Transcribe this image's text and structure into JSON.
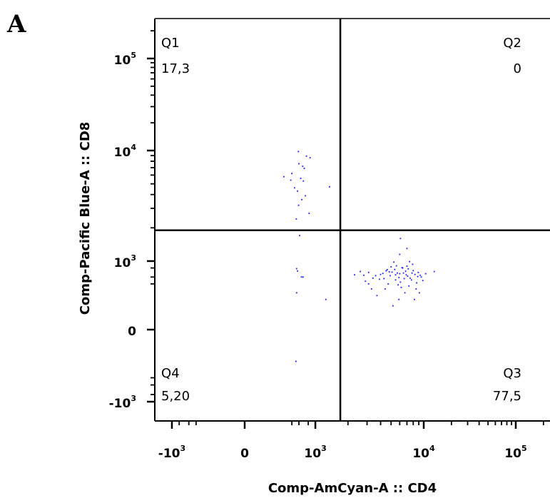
{
  "panel_label": "A",
  "chart_data": {
    "type": "scatter",
    "xlabel": "Comp-AmCyan-A :: CD4",
    "ylabel": "Comp-Pacific Blue-A :: CD8",
    "x_scale": "biexponential",
    "y_scale": "biexponential",
    "x_ticks": [
      {
        "value": -1000,
        "base": "-10",
        "exp": "3"
      },
      {
        "value": 0,
        "base": "0",
        "exp": ""
      },
      {
        "value": 1000,
        "base": "10",
        "exp": "3"
      },
      {
        "value": 10000,
        "base": "10",
        "exp": "4"
      },
      {
        "value": 100000,
        "base": "10",
        "exp": "5"
      }
    ],
    "y_ticks": [
      {
        "value": 100000,
        "base": "10",
        "exp": "5"
      },
      {
        "value": 10000,
        "base": "10",
        "exp": "4"
      },
      {
        "value": 1000,
        "base": "10",
        "exp": "3"
      },
      {
        "value": 0,
        "base": "0",
        "exp": ""
      },
      {
        "value": -1000,
        "base": "-10",
        "exp": "3"
      }
    ],
    "gates": {
      "x": 1700,
      "y": 1900
    },
    "quadrants": [
      {
        "name": "Q1",
        "value": "17,3"
      },
      {
        "name": "Q2",
        "value": "0"
      },
      {
        "name": "Q3",
        "value": "77,5"
      },
      {
        "name": "Q4",
        "value": "5,20"
      }
    ],
    "point_color": "#1a1aff",
    "points": [
      [
        45,
        5800
      ],
      [
        100,
        6200
      ],
      [
        190,
        9800
      ],
      [
        240,
        5600
      ],
      [
        130,
        4600
      ],
      [
        310,
        5300
      ],
      [
        200,
        7600
      ],
      [
        420,
        8900
      ],
      [
        600,
        8600
      ],
      [
        290,
        7200
      ],
      [
        175,
        4300
      ],
      [
        380,
        3900
      ],
      [
        265,
        3600
      ],
      [
        195,
        3200
      ],
      [
        545,
        2700
      ],
      [
        155,
        2400
      ],
      [
        1350,
        4700
      ],
      [
        215,
        1700
      ],
      [
        90,
        5400
      ],
      [
        340,
        6900
      ],
      [
        160,
        470
      ],
      [
        175,
        370
      ],
      [
        255,
        200
      ],
      [
        300,
        200
      ],
      [
        160,
        40
      ],
      [
        150,
        -20
      ],
      [
        1250,
        20
      ],
      [
        2600,
        350
      ],
      [
        3100,
        320
      ],
      [
        3600,
        230
      ],
      [
        2900,
        130
      ],
      [
        3300,
        60
      ],
      [
        3900,
        160
      ],
      [
        4600,
        420
      ],
      [
        4200,
        290
      ],
      [
        5100,
        330
      ],
      [
        5500,
        250
      ],
      [
        6100,
        120
      ],
      [
        4700,
        100
      ],
      [
        5900,
        190
      ],
      [
        6500,
        300
      ],
      [
        7100,
        220
      ],
      [
        7700,
        150
      ],
      [
        8300,
        260
      ],
      [
        8900,
        320
      ],
      [
        9500,
        200
      ],
      [
        7300,
        80
      ],
      [
        6700,
        40
      ],
      [
        5200,
        10
      ],
      [
        4400,
        60
      ],
      [
        3700,
        30
      ],
      [
        8600,
        110
      ],
      [
        9800,
        140
      ],
      [
        10500,
        280
      ],
      [
        5600,
        620
      ],
      [
        6300,
        520
      ],
      [
        7900,
        720
      ],
      [
        5300,
        900
      ],
      [
        7400,
        950
      ],
      [
        6000,
        1150
      ],
      [
        6100,
        1600
      ],
      [
        7000,
        1300
      ],
      [
        5400,
        430
      ],
      [
        6800,
        360
      ],
      [
        8000,
        380
      ],
      [
        4900,
        230
      ],
      [
        6600,
        170
      ],
      [
        7500,
        180
      ],
      [
        5800,
        90
      ],
      [
        4300,
        170
      ],
      [
        3400,
        180
      ],
      [
        8500,
        60
      ],
      [
        9100,
        40
      ],
      [
        6400,
        500
      ],
      [
        7200,
        460
      ],
      [
        5000,
        560
      ],
      [
        9300,
        240
      ],
      [
        4000,
        260
      ],
      [
        2800,
        240
      ],
      [
        13000,
        350
      ],
      [
        6200,
        70
      ],
      [
        5700,
        300
      ],
      [
        4800,
        340
      ],
      [
        7800,
        300
      ],
      [
        3100,
        100
      ],
      [
        8800,
        210
      ],
      [
        6900,
        250
      ],
      [
        5500,
        150
      ],
      [
        6000,
        280
      ],
      [
        2300,
        250
      ],
      [
        4500,
        380
      ],
      [
        7000,
        600
      ],
      [
        5900,
        20
      ],
      [
        8200,
        20
      ]
    ]
  }
}
